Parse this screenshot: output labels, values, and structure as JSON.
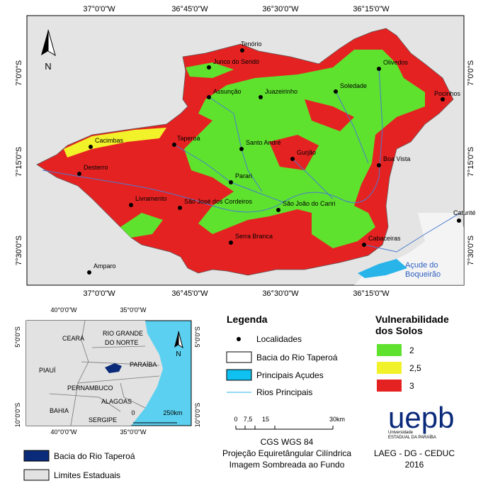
{
  "map": {
    "coords_top": [
      "37°0'0\"W",
      "36°45'0\"W",
      "36°30'0\"W",
      "36°15'0\"W"
    ],
    "coords_bottom": [
      "37°0'0\"W",
      "36°45'0\"W",
      "36°30'0\"W",
      "36°15'0\"W"
    ],
    "coords_left": [
      "7°0'0\"S",
      "7°15'0\"S",
      "7°30'0\"S"
    ],
    "coords_right": [
      "7°0'0\"S",
      "7°15'0\"S",
      "7°30'0\"S"
    ],
    "north": "N",
    "localities": [
      "Tenório",
      "Junco do Seridó",
      "Olivedos",
      "Assunção",
      "Juazeirinho",
      "Soledade",
      "Pocinhos",
      "Cacimbas",
      "Taperoá",
      "Santo André",
      "Gurjão",
      "Boa Vista",
      "Desterro",
      "Parari",
      "Livramento",
      "São José dos Cordeiros",
      "São João do Cariri",
      "Caturité",
      "Serra Branca",
      "Cabaceiras",
      "Amparo"
    ],
    "reservoir_label": [
      "Açude do",
      "Boqueirão"
    ]
  },
  "inset": {
    "coords_top": [
      "40°0'0\"W",
      "35°0'0\"W"
    ],
    "coords_bottom": [
      "40°0'0\"W",
      "35°0'0\"W"
    ],
    "coords_left": [
      "5°0'0\"S",
      "10°0'0\"S"
    ],
    "coords_right": [
      "5°0'0\"S",
      "10°0'0\"S"
    ],
    "states": [
      "CEARÁ",
      "RIO GRANDE",
      "DO NORTE",
      "PARAÍBA",
      "PIAUÍ",
      "PERNAMBUCO",
      "ALAGOAS",
      "BAHIA",
      "SERGIPE"
    ],
    "north": "N",
    "scale": [
      "0",
      "250km"
    ],
    "legend": [
      "Bacia do Rio Taperoá",
      "Limites Estaduais"
    ]
  },
  "legend": {
    "title": "Legenda",
    "items": [
      "Localidades",
      "Bacia do Rio Taperoá",
      "Principais Açudes",
      "Rios Principais"
    ],
    "scale": [
      "0",
      "7,5",
      "15",
      "30km"
    ],
    "notes": [
      "CGS WGS 84",
      "Projeção Equiretângular Cilíndrica",
      "Imagem Sombreada ao Fundo"
    ]
  },
  "vulnerability": {
    "title": [
      "Vulnerabilidade",
      "dos Solos"
    ],
    "classes": [
      "2",
      "2,5",
      "3"
    ]
  },
  "credits": {
    "logo": "uepb",
    "university": [
      "Universidade",
      "ESTADUAL DA PARAÍBA"
    ],
    "lab": "LAEG - DG - CEDUC",
    "year": "2016"
  }
}
